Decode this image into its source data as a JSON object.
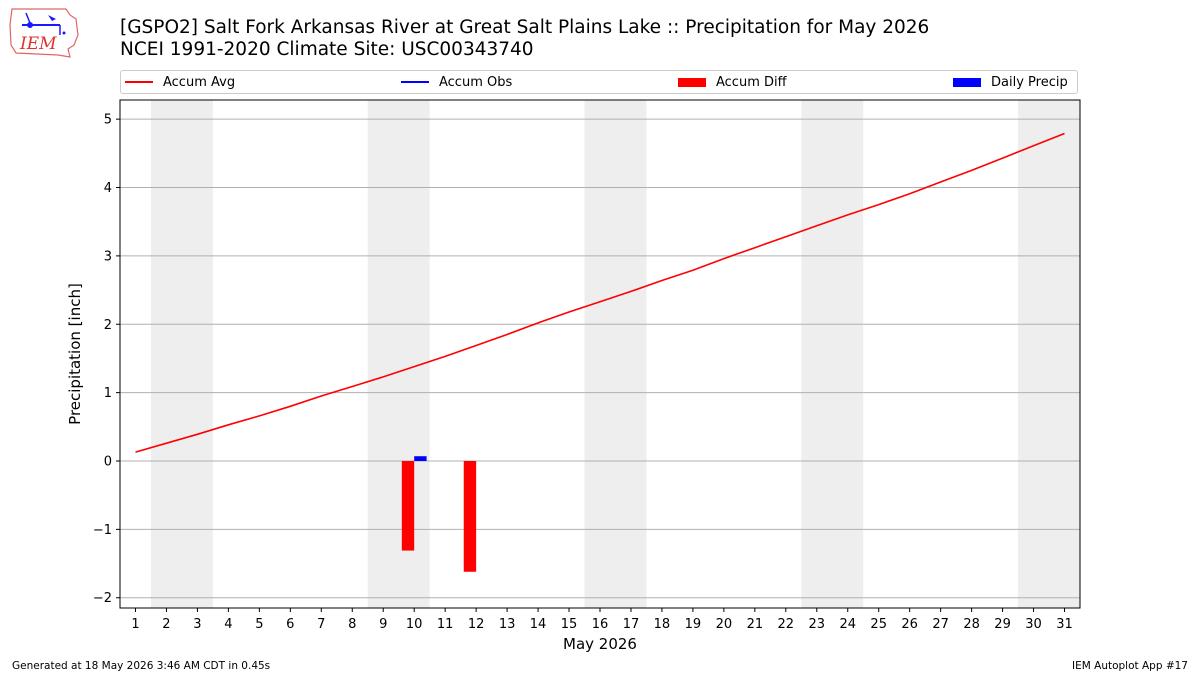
{
  "header": {
    "title_line1": "[GSPO2] Salt Fork Arkansas River at Great Salt Plains Lake :: Precipitation for May 2026",
    "title_line2": "NCEI 1991-2020 Climate Site: USC00343740"
  },
  "logo": {
    "text": "IEM"
  },
  "footer": {
    "generated": "Generated at 18 May 2026 3:46 AM CDT in 0.45s",
    "app": "IEM Autoplot App #17"
  },
  "colors": {
    "accum_avg": "#ff0000",
    "accum_obs": "#0000ff",
    "accum_diff": "#ff0000",
    "daily_precip": "#0000ff",
    "weekend_shade": "#eeeeee",
    "grid": "#b0b0b0"
  },
  "chart_data": {
    "type": "line",
    "title": "[GSPO2] Salt Fork Arkansas River at Great Salt Plains Lake :: Precipitation for May 2026",
    "xlabel": "May 2026",
    "ylabel": "Precipitation [inch]",
    "xlim": [
      0.5,
      31.5
    ],
    "ylim": [
      -2.15,
      5.28
    ],
    "x_ticks": [
      1,
      2,
      3,
      4,
      5,
      6,
      7,
      8,
      9,
      10,
      11,
      12,
      13,
      14,
      15,
      16,
      17,
      18,
      19,
      20,
      21,
      22,
      23,
      24,
      25,
      26,
      27,
      28,
      29,
      30,
      31
    ],
    "y_ticks": [
      -2,
      -1,
      0,
      1,
      2,
      3,
      4,
      5
    ],
    "y_tick_labels": [
      "−2",
      "−1",
      "0",
      "1",
      "2",
      "3",
      "4",
      "5"
    ],
    "grid": "horizontal",
    "legend_placement": "top",
    "weekend_days": [
      [
        2,
        3
      ],
      [
        9,
        10
      ],
      [
        16,
        17
      ],
      [
        23,
        24
      ],
      [
        30,
        31
      ]
    ],
    "legend": [
      {
        "label": "Accum Avg",
        "kind": "line",
        "color": "#ff0000"
      },
      {
        "label": "Accum Obs",
        "kind": "line",
        "color": "#0000ff"
      },
      {
        "label": "Accum Diff",
        "kind": "bar",
        "color": "#ff0000"
      },
      {
        "label": "Daily Precip",
        "kind": "bar",
        "color": "#0000ff"
      }
    ],
    "series": [
      {
        "name": "Accum Avg",
        "type": "line",
        "x": [
          1,
          2,
          3,
          4,
          5,
          6,
          7,
          8,
          9,
          10,
          11,
          12,
          13,
          14,
          15,
          16,
          17,
          18,
          19,
          20,
          21,
          22,
          23,
          24,
          25,
          26,
          27,
          28,
          29,
          30,
          31
        ],
        "values": [
          0.13,
          0.26,
          0.39,
          0.53,
          0.66,
          0.8,
          0.95,
          1.09,
          1.23,
          1.38,
          1.53,
          1.69,
          1.85,
          2.02,
          2.18,
          2.33,
          2.48,
          2.64,
          2.79,
          2.96,
          3.12,
          3.28,
          3.44,
          3.6,
          3.75,
          3.91,
          4.08,
          4.25,
          4.43,
          4.61,
          4.79
        ]
      },
      {
        "name": "Accum Diff",
        "type": "bar",
        "x": [
          10,
          12
        ],
        "values": [
          -1.31,
          -1.62
        ]
      },
      {
        "name": "Daily Precip",
        "type": "bar",
        "x": [
          10
        ],
        "values": [
          0.07
        ]
      }
    ]
  }
}
